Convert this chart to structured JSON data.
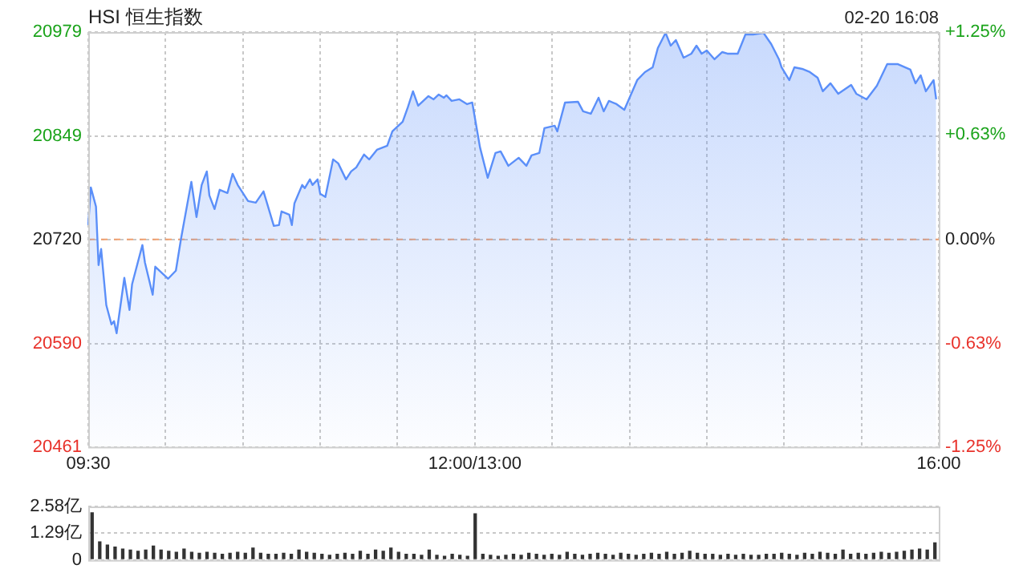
{
  "chart_data": [
    {
      "type": "area",
      "title": "HSI 恒生指数",
      "annotations": [
        "02-20 16:08"
      ],
      "legend": false,
      "grid": true,
      "categories": [
        "09:30",
        null,
        null,
        null,
        null,
        null,
        null,
        null,
        null,
        null,
        null,
        null,
        null,
        null,
        null,
        null,
        null,
        null,
        null,
        null,
        null,
        null,
        null,
        null,
        null,
        null,
        null,
        null,
        null,
        null,
        null,
        null,
        null,
        null,
        null,
        null,
        null,
        null,
        null,
        null,
        null,
        null,
        null,
        null,
        null,
        null,
        null,
        null,
        null,
        null,
        null,
        null,
        null,
        null,
        null,
        null,
        null,
        null,
        null,
        null,
        null,
        null,
        null,
        null,
        null,
        null,
        null,
        null,
        null,
        null,
        null,
        null,
        null,
        null,
        null,
        null,
        null,
        null,
        null,
        null,
        null,
        null,
        null,
        null,
        null,
        null,
        null,
        null,
        null,
        null,
        null,
        null,
        null,
        null,
        null,
        null,
        null,
        null,
        null,
        null,
        null,
        null,
        null,
        null,
        null,
        null,
        null,
        null,
        null,
        null,
        null,
        null,
        null,
        null,
        null,
        null,
        null,
        null,
        null,
        null,
        null,
        null,
        null,
        null,
        null,
        null,
        null,
        null,
        null,
        null,
        null,
        null,
        null,
        null,
        null,
        null,
        null,
        null,
        null,
        null,
        null,
        null,
        null,
        null,
        null,
        null,
        null,
        null,
        null,
        null,
        "12:00/13:00",
        null,
        null,
        null,
        null,
        null,
        null,
        null,
        null,
        null,
        null,
        null,
        null,
        null,
        null,
        null,
        null,
        null,
        null,
        null,
        null,
        null,
        null,
        null,
        null,
        null,
        null,
        null,
        null,
        null,
        null,
        null,
        null,
        null,
        null,
        null,
        null,
        null,
        null,
        null,
        null,
        null,
        null,
        null,
        null,
        null,
        null,
        null,
        null,
        null,
        null,
        null,
        null,
        null,
        null,
        null,
        null,
        null,
        null,
        null,
        null,
        null,
        null,
        null,
        null,
        null,
        null,
        null,
        null,
        null,
        null,
        null,
        null,
        null,
        null,
        null,
        null,
        null,
        null,
        null,
        null,
        null,
        null,
        null,
        null,
        null,
        null,
        null,
        null,
        null,
        null,
        null,
        null,
        null,
        null,
        null,
        null,
        null,
        null,
        null,
        null,
        null,
        null,
        null,
        null,
        null,
        null,
        null,
        null,
        null,
        null,
        null,
        null,
        null,
        null,
        null,
        null,
        null,
        null,
        null,
        null,
        null,
        null,
        null,
        null,
        null,
        null,
        null,
        null,
        null,
        null,
        null,
        null,
        null,
        null,
        null,
        null,
        null,
        null,
        null,
        null,
        null,
        null,
        null,
        null,
        null,
        null,
        null,
        null,
        null,
        null,
        null,
        null,
        null,
        null,
        null,
        null,
        null,
        null,
        null,
        null,
        null,
        null,
        null,
        null,
        null,
        null,
        null,
        null,
        null,
        null,
        null,
        null,
        null,
        null,
        null,
        null,
        null,
        null,
        null,
        "16:00"
      ],
      "ylim": [
        20461,
        20979
      ],
      "yticks": [
        20461,
        20590,
        20720,
        20849,
        20979
      ],
      "y2lim": [
        -1.25,
        1.25
      ],
      "y2ticks": [
        {
          "value": -1.25,
          "label": "-1.25%"
        },
        {
          "value": -0.63,
          "label": "-0.63%"
        },
        {
          "value": 0,
          "label": "0.00%"
        },
        {
          "value": 0.63,
          "label": "+0.63%"
        },
        {
          "value": 1.25,
          "label": "+1.25%"
        }
      ],
      "ref_lines": [
        {
          "axis": "y",
          "value": 20720,
          "color": "#f0a070",
          "line_style": "dashed"
        }
      ],
      "series": [
        {
          "color": "#5b8ff9",
          "values": [
            20738,
            20785,
            null,
            20761,
            20688,
            20708,
            null,
            20638,
            null,
            20614,
            20618,
            20603,
            null,
            null,
            20672,
            null,
            20632,
            20664,
            null,
            null,
            null,
            20713,
            20691,
            null,
            null,
            20651,
            20686,
            null,
            null,
            null,
            null,
            20671,
            null,
            null,
            20681,
            null,
            20721,
            null,
            null,
            null,
            20792,
            null,
            20748,
            null,
            20788,
            null,
            20805,
            20775,
            null,
            20758,
            null,
            20782,
            null,
            null,
            20778,
            null,
            20802,
            null,
            20788,
            null,
            null,
            null,
            20768,
            null,
            null,
            20766,
            null,
            null,
            20780,
            null,
            null,
            null,
            20737,
            null,
            20738,
            20755,
            null,
            null,
            20751,
            20738,
            20765,
            null,
            null,
            20788,
            20784,
            null,
            20795,
            20788,
            null,
            20795,
            20777,
            null,
            20773,
            null,
            null,
            20820,
            null,
            20815,
            null,
            null,
            20795,
            null,
            20805,
            null,
            20810,
            null,
            null,
            20826,
            null,
            20820,
            null,
            null,
            20832,
            null,
            null,
            null,
            20837,
            null,
            20855,
            null,
            null,
            null,
            20867,
            null,
            20885,
            null,
            20905,
            null,
            20887,
            null,
            null,
            null,
            20899,
            null,
            20895,
            null,
            20901,
            null,
            20897,
            20900,
            null,
            20893,
            null,
            null,
            20895,
            null,
            null,
            20889,
            null,
            20891,
            null,
            null,
            20835,
            null,
            null,
            20797,
            null,
            null,
            20828,
            null,
            20830,
            null,
            null,
            20812,
            null,
            null,
            null,
            20822,
            null,
            null,
            20812,
            null,
            20825,
            null,
            null,
            20828,
            null,
            20859,
            null,
            null,
            null,
            20862,
            20855,
            null,
            null,
            20891,
            null,
            null,
            null,
            null,
            20892,
            null,
            20880,
            null,
            null,
            20877,
            null,
            null,
            20897,
            null,
            20880,
            null,
            20893,
            null,
            null,
            20889,
            null,
            null,
            20882,
            null,
            null,
            null,
            null,
            20919,
            null,
            null,
            20929,
            null,
            null,
            20935,
            null,
            20959,
            null,
            null,
            20978,
            null,
            20962,
            null,
            20969,
            null,
            null,
            20947,
            null,
            null,
            20952,
            null,
            20962,
            null,
            20952,
            null,
            20956,
            null,
            null,
            20945,
            null,
            null,
            20954,
            null,
            20952,
            null,
            null,
            null,
            20952,
            null,
            null,
            20976,
            null,
            null,
            20976,
            null,
            null,
            null,
            20978,
            null,
            null,
            20964,
            null,
            null,
            20945,
            20935,
            null,
            null,
            20919,
            null,
            20935,
            null,
            null,
            20933,
            null,
            null,
            20929,
            null,
            null,
            20922,
            null,
            20905,
            null,
            null,
            20915,
            null,
            null,
            20902,
            null,
            null,
            null,
            null,
            20913,
            null,
            20902,
            null,
            null,
            null,
            20895,
            null,
            null,
            null,
            20912,
            null,
            null,
            null,
            20939,
            null,
            null,
            null,
            20939,
            null,
            null,
            null,
            null,
            20932,
            null,
            20915,
            null,
            20925,
            null,
            20905,
            null,
            null,
            20919,
            20895,
            null
          ]
        }
      ]
    },
    {
      "type": "bar",
      "legend": false,
      "grid": "y",
      "tick_labels": "y",
      "ylim": [
        0,
        2.58
      ],
      "yticks": [
        {
          "value": 0,
          "label": "0"
        },
        {
          "value": 1.29,
          "label": "1.29亿"
        },
        {
          "value": 2.58,
          "label": "2.58亿"
        }
      ],
      "categories": [
        null,
        null,
        null,
        null,
        null,
        null,
        null,
        null,
        null,
        null,
        null,
        null,
        null,
        null,
        null,
        null,
        null,
        null,
        null,
        null,
        null,
        null,
        null,
        null,
        null,
        null,
        null,
        null,
        null,
        null,
        null,
        null,
        null,
        null,
        null,
        null,
        null,
        null,
        null,
        null,
        null,
        null,
        null,
        null,
        null,
        null,
        null,
        null,
        null,
        null,
        null,
        null,
        null,
        null,
        null,
        null,
        null,
        null,
        null,
        null,
        null,
        null,
        null,
        null,
        null,
        null,
        null,
        null,
        null,
        null,
        null,
        null,
        null,
        null,
        null,
        null,
        null,
        null,
        null,
        null,
        null,
        null,
        null,
        null,
        null,
        null,
        null,
        null,
        null,
        null,
        null,
        null,
        null,
        null,
        null,
        null,
        null,
        null,
        null,
        null,
        null,
        null,
        null,
        null,
        null,
        null,
        null,
        null,
        null,
        null,
        null
      ],
      "series": [
        {
          "color": "#333333",
          "values": [
            2.3,
            0.9,
            0.75,
            0.65,
            0.55,
            0.5,
            0.45,
            0.5,
            0.7,
            0.5,
            0.45,
            0.4,
            0.55,
            0.4,
            0.35,
            0.4,
            0.35,
            0.3,
            0.35,
            0.4,
            0.35,
            0.6,
            0.35,
            0.3,
            0.3,
            0.35,
            0.3,
            0.5,
            0.4,
            0.35,
            0.3,
            0.25,
            0.3,
            0.35,
            0.3,
            0.45,
            0.3,
            0.5,
            0.45,
            0.6,
            0.4,
            0.3,
            0.3,
            0.25,
            0.5,
            0.25,
            0.2,
            0.3,
            0.25,
            0.2,
            2.25,
            0.3,
            0.25,
            0.2,
            0.25,
            0.3,
            0.25,
            0.35,
            0.3,
            0.25,
            0.3,
            0.25,
            0.4,
            0.3,
            0.25,
            0.3,
            0.35,
            0.3,
            0.25,
            0.35,
            0.3,
            0.25,
            0.3,
            0.35,
            0.3,
            0.4,
            0.3,
            0.35,
            0.45,
            0.35,
            0.3,
            0.3,
            0.25,
            0.3,
            0.25,
            0.3,
            0.25,
            0.25,
            0.3,
            0.3,
            0.35,
            0.3,
            0.25,
            0.35,
            0.3,
            0.4,
            0.35,
            0.3,
            0.5,
            0.3,
            0.35,
            0.3,
            0.35,
            0.4,
            0.35,
            0.4,
            0.45,
            0.5,
            0.55,
            0.5,
            0.85
          ]
        }
      ]
    }
  ]
}
